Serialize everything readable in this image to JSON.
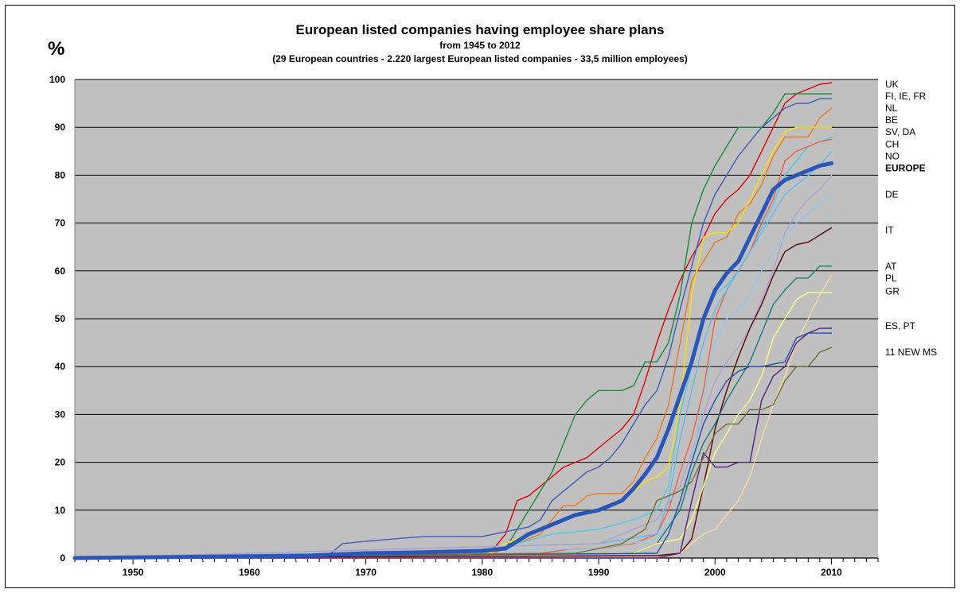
{
  "chart_data": {
    "type": "line",
    "title": "European listed companies having employee share plans",
    "subtitle": "from 1945 to 2012",
    "subtitle2": "(29 European countries - 2.220 largest European listed companies - 33,5 million employees)",
    "ylabel": "%",
    "xlim": [
      1945,
      2014
    ],
    "ylim": [
      0,
      100
    ],
    "yticks": [
      0,
      10,
      20,
      30,
      40,
      50,
      60,
      70,
      80,
      90,
      100
    ],
    "xticks": [
      1950,
      1960,
      1970,
      1980,
      1990,
      2000,
      2010
    ],
    "grid": true,
    "right_labels": [
      {
        "text": "UK",
        "y": 99,
        "bold": false
      },
      {
        "text": "FI, IE, FR",
        "y": 96.5,
        "bold": false
      },
      {
        "text": "NL",
        "y": 94,
        "bold": false
      },
      {
        "text": "BE",
        "y": 91.5,
        "bold": false
      },
      {
        "text": "SV, DA",
        "y": 89,
        "bold": false
      },
      {
        "text": "CH",
        "y": 86.5,
        "bold": false
      },
      {
        "text": "NO",
        "y": 84,
        "bold": false
      },
      {
        "text": "EUROPE",
        "y": 81.5,
        "bold": true
      },
      {
        "text": "DE",
        "y": 76,
        "bold": false
      },
      {
        "text": "IT",
        "y": 68.5,
        "bold": false
      },
      {
        "text": "AT",
        "y": 61,
        "bold": false
      },
      {
        "text": "PL",
        "y": 58.5,
        "bold": false
      },
      {
        "text": "GR",
        "y": 55.7,
        "bold": false
      },
      {
        "text": "ES, PT",
        "y": 48.5,
        "bold": false
      },
      {
        "text": "11 NEW  MS",
        "y": 43,
        "bold": false
      }
    ],
    "series": [
      {
        "color": "#e00000",
        "x": [
          1945,
          1965,
          1970,
          1980,
          1981,
          1982,
          1983,
          1984,
          1985,
          1986,
          1987,
          1988,
          1989,
          1990,
          1991,
          1992,
          1993,
          1994,
          1995,
          1996,
          1997,
          1998,
          1999,
          2000,
          2001,
          2002,
          2003,
          2004,
          2005,
          2006,
          2007,
          2008,
          2009,
          2010
        ],
        "y": [
          0,
          0.3,
          0.5,
          1,
          2,
          5,
          12,
          13,
          15,
          17,
          19,
          20,
          21,
          23,
          25,
          27,
          30,
          37,
          45,
          52,
          58,
          63,
          67,
          72,
          75,
          77,
          80,
          85,
          90,
          95,
          97,
          98,
          99,
          99.3
        ]
      },
      {
        "color": "#1a8a3a",
        "x": [
          1945,
          1965,
          1970,
          1980,
          1982,
          1983,
          1984,
          1985,
          1986,
          1987,
          1988,
          1989,
          1990,
          1991,
          1992,
          1993,
          1994,
          1995,
          1996,
          1997,
          1998,
          1999,
          2000,
          2001,
          2002,
          2003,
          2004,
          2005,
          2006,
          2007,
          2008,
          2009,
          2010
        ],
        "y": [
          0,
          0.3,
          0.5,
          1,
          2,
          6,
          10,
          14,
          18,
          24,
          30,
          33,
          35,
          35,
          35,
          36,
          41,
          41,
          45,
          55,
          70,
          77,
          82,
          86,
          90,
          90,
          90,
          93,
          97,
          97,
          97,
          97,
          97
        ]
      },
      {
        "color": "#3b5cb8",
        "x": [
          1945,
          1965,
          1967,
          1968,
          1970,
          1975,
          1980,
          1982,
          1983,
          1984,
          1985,
          1986,
          1987,
          1988,
          1989,
          1990,
          1991,
          1992,
          1993,
          1994,
          1995,
          1996,
          1997,
          1998,
          1999,
          2000,
          2001,
          2002,
          2003,
          2004,
          2005,
          2006,
          2007,
          2008,
          2009,
          2010
        ],
        "y": [
          0,
          0.5,
          1,
          3,
          3.5,
          4.5,
          4.5,
          5.5,
          6,
          6.5,
          8,
          12,
          14,
          16,
          18,
          19,
          21,
          24,
          28,
          32,
          35,
          42,
          52,
          61,
          70,
          76,
          80,
          84,
          87,
          90,
          92,
          94,
          95,
          95,
          96,
          96
        ]
      },
      {
        "color": "#f07820",
        "x": [
          1945,
          1980,
          1985,
          1987,
          1988,
          1989,
          1990,
          1991,
          1992,
          1993,
          1994,
          1995,
          1996,
          1997,
          1998,
          1999,
          2000,
          2001,
          2002,
          2003,
          2004,
          2005,
          2006,
          2007,
          2008,
          2009,
          2010
        ],
        "y": [
          0,
          0,
          5,
          11,
          11,
          13,
          13.5,
          13.5,
          13.5,
          16,
          21,
          25,
          32,
          45,
          58,
          62,
          66,
          67,
          72,
          74,
          78,
          84,
          88,
          88,
          88,
          92,
          94
        ]
      },
      {
        "color": "#ffe000",
        "x": [
          1945,
          1980,
          1982,
          1985,
          1988,
          1990,
          1992,
          1994,
          1995,
          1996,
          1997,
          1998,
          1999,
          2000,
          2001,
          2002,
          2003,
          2004,
          2005,
          2006,
          2007,
          2008,
          2009,
          2010
        ],
        "y": [
          0,
          0,
          3,
          6,
          9,
          10,
          12,
          16,
          17,
          19,
          32,
          55,
          67,
          68,
          68,
          70,
          75,
          80,
          85,
          89,
          90,
          90,
          90,
          90
        ]
      },
      {
        "color": "#50c8e8",
        "x": [
          1945,
          1972,
          1975,
          1980,
          1983,
          1986,
          1990,
          1993,
          1995,
          1996,
          1997,
          1998,
          1999,
          2000,
          2001,
          2002,
          2003,
          2004,
          2005,
          2006,
          2007,
          2008,
          2009,
          2010
        ],
        "y": [
          0,
          0.5,
          1,
          1,
          3,
          5,
          6,
          8,
          10,
          15,
          30,
          40,
          50,
          55,
          57,
          60,
          64,
          69,
          74,
          80,
          83,
          86,
          87,
          88
        ]
      },
      {
        "color": "#f06040",
        "x": [
          1945,
          1985,
          1988,
          1990,
          1993,
          1995,
          1996,
          1997,
          1998,
          1999,
          2000,
          2001,
          2002,
          2003,
          2004,
          2005,
          2006,
          2007,
          2008,
          2009,
          2010
        ],
        "y": [
          0,
          1,
          2,
          2,
          3,
          5,
          10,
          18,
          25,
          35,
          50,
          56,
          60,
          64,
          70,
          75,
          83,
          85,
          86,
          87,
          87.5
        ]
      },
      {
        "color": "#60b8f0",
        "x": [
          1945,
          1990,
          1995,
          1996,
          1997,
          1998,
          1999,
          2000,
          2001,
          2002,
          2003,
          2004,
          2005,
          2006,
          2007,
          2008,
          2009,
          2010
        ],
        "y": [
          0,
          3,
          5,
          12,
          25,
          35,
          45,
          52,
          56,
          60,
          64,
          68,
          72,
          76,
          78,
          80,
          82,
          85
        ]
      },
      {
        "color": "#b0a0d0",
        "x": [
          1945,
          1990,
          1995,
          1997,
          1998,
          1999,
          2000,
          2001,
          2002,
          2003,
          2004,
          2005,
          2006,
          2007,
          2008,
          2009,
          2010
        ],
        "y": [
          0,
          3,
          8,
          15,
          22,
          30,
          37,
          41,
          44,
          48,
          54,
          60,
          68,
          72,
          75,
          77,
          80
        ]
      },
      {
        "color": "#90c8f0",
        "x": [
          1945,
          1990,
          1995,
          1997,
          1998,
          1999,
          2000,
          2001,
          2002,
          2003,
          2004,
          2005,
          2006,
          2007,
          2008,
          2009,
          2010
        ],
        "y": [
          0,
          2,
          4,
          10,
          20,
          34,
          45,
          50,
          52,
          55,
          60,
          64,
          67,
          70,
          72,
          74,
          76
        ]
      },
      {
        "color": "#5a0000",
        "x": [
          1945,
          1995,
          1997,
          1998,
          1999,
          2000,
          2001,
          2002,
          2003,
          2004,
          2005,
          2006,
          2007,
          2008,
          2009,
          2010
        ],
        "y": [
          0,
          0.5,
          1,
          4,
          15,
          27,
          35,
          42,
          48,
          53,
          59,
          64,
          65.5,
          66,
          67.5,
          69
        ]
      },
      {
        "color": "#1a7a7a",
        "x": [
          1945,
          1993,
          1995,
          1997,
          1998,
          1999,
          2000,
          2001,
          2002,
          2003,
          2004,
          2005,
          2006,
          2007,
          2008,
          2009,
          2010
        ],
        "y": [
          0,
          1,
          3,
          10,
          18,
          24,
          28,
          33,
          37,
          41,
          47,
          53,
          56,
          58.5,
          58.5,
          61,
          61
        ]
      },
      {
        "color": "#ffd8a0",
        "x": [
          1945,
          1995,
          1997,
          1998,
          1999,
          2000,
          2001,
          2002,
          2003,
          2004,
          2005,
          2006,
          2007,
          2008,
          2009,
          2010
        ],
        "y": [
          0,
          0,
          1,
          3,
          5,
          6,
          9,
          12,
          17,
          25,
          32,
          38,
          45,
          50,
          55,
          59
        ]
      },
      {
        "color": "#ffff80",
        "x": [
          1945,
          1993,
          1995,
          1997,
          1998,
          1999,
          2000,
          2001,
          2002,
          2003,
          2004,
          2005,
          2006,
          2007,
          2008,
          2009,
          2010
        ],
        "y": [
          0,
          1,
          3,
          4,
          8,
          15,
          22,
          26,
          30,
          33,
          38,
          46,
          50,
          54,
          55.5,
          55.5,
          55.5
        ]
      },
      {
        "color": "#5a2080",
        "x": [
          1945,
          1995,
          1997,
          1998,
          1999,
          2000,
          2001,
          2002,
          2003,
          2004,
          2005,
          2006,
          2007,
          2008,
          2009,
          2010
        ],
        "y": [
          0,
          0,
          1,
          12,
          22,
          19,
          19,
          20,
          20,
          33,
          38,
          40,
          45,
          47,
          48,
          48
        ]
      },
      {
        "color": "#2050b0",
        "x": [
          1945,
          1995,
          1996,
          1997,
          1998,
          1999,
          2000,
          2001,
          2002,
          2003,
          2004,
          2005,
          2006,
          2007,
          2008,
          2009,
          2010
        ],
        "y": [
          0,
          1,
          5,
          12,
          20,
          28,
          33,
          37,
          39,
          40,
          40,
          40.5,
          41,
          46,
          47,
          47,
          47
        ]
      },
      {
        "color": "#707030",
        "x": [
          1945,
          1988,
          1990,
          1992,
          1994,
          1995,
          1996,
          1997,
          1998,
          1999,
          2000,
          2001,
          2002,
          2003,
          2004,
          2005,
          2006,
          2007,
          2008,
          2009,
          2010
        ],
        "y": [
          0,
          1,
          2,
          3,
          6,
          12,
          13,
          14,
          16,
          21,
          26,
          28,
          28,
          31,
          31,
          32,
          37,
          40,
          40,
          43,
          44
        ]
      },
      {
        "color": "#2a56b8",
        "thick": true,
        "x": [
          1945,
          1965,
          1970,
          1975,
          1980,
          1982,
          1984,
          1986,
          1988,
          1990,
          1991,
          1992,
          1993,
          1994,
          1995,
          1996,
          1997,
          1998,
          1999,
          2000,
          2001,
          2002,
          2003,
          2004,
          2005,
          2006,
          2007,
          2008,
          2009,
          2010
        ],
        "y": [
          0,
          0.5,
          1,
          1.2,
          1.5,
          2,
          5,
          7,
          9,
          10,
          11,
          12,
          14.5,
          17.5,
          21,
          27,
          34,
          41,
          50,
          56,
          59.5,
          62,
          67,
          72,
          77,
          79,
          80,
          81,
          82,
          82.5
        ]
      }
    ]
  }
}
